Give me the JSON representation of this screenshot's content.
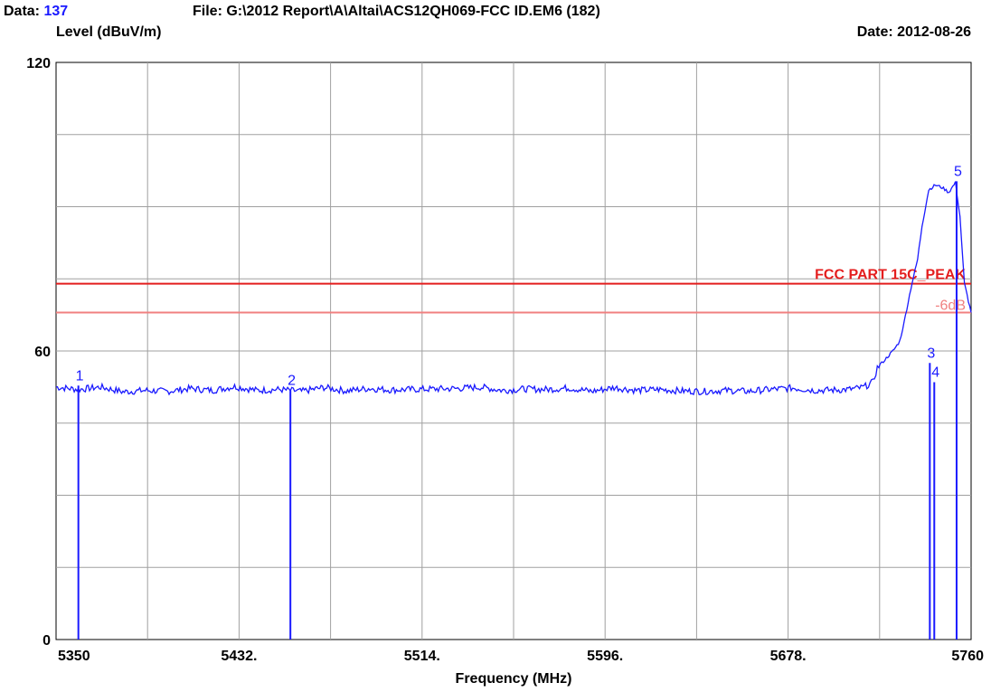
{
  "header": {
    "data_label": "Data:",
    "data_value": "137",
    "file": "File: G:\\2012 Report\\A\\Altai\\ACS12QH069-FCC ID.EM6  (182)",
    "level_label": "Level (dBuV/m)",
    "date": "Date: 2012-08-26"
  },
  "colors": {
    "trace": "#1a1aff",
    "limit": "#e41e1e",
    "limit_margin": "#f08080",
    "grid": "#a0a0a0",
    "background": "#ffffff"
  },
  "chart_data": {
    "type": "line",
    "xlabel": "Frequency (MHz)",
    "ylabel": "Level (dBuV/m)",
    "xlim": [
      5350,
      5760
    ],
    "ylim": [
      0,
      120
    ],
    "grid": true,
    "x_ticks": [
      "5350",
      "5432.",
      "5514.",
      "5596.",
      "5678.",
      "5760"
    ],
    "x_tick_values": [
      5350,
      5432,
      5514,
      5596,
      5678,
      5760
    ],
    "y_ticks": [
      "0",
      "60",
      "120"
    ],
    "y_tick_values": [
      0,
      60,
      120
    ],
    "series": [
      {
        "x": [
          5350,
          5360,
          5370,
          5380,
          5390,
          5400,
          5410,
          5420,
          5430,
          5440,
          5450,
          5460,
          5470,
          5480,
          5490,
          5500,
          5510,
          5520,
          5530,
          5540,
          5550,
          5560,
          5570,
          5580,
          5590,
          5600,
          5610,
          5620,
          5630,
          5640,
          5650,
          5660,
          5670,
          5680,
          5690,
          5700,
          5705,
          5710,
          5712,
          5714,
          5716,
          5718,
          5720,
          5722,
          5725,
          5728,
          5730,
          5733,
          5736,
          5738,
          5741,
          5744,
          5747,
          5750,
          5753,
          5755,
          5757,
          5760
        ],
        "y": [
          52.5,
          52.0,
          52.5,
          51.5,
          51.8,
          51.6,
          52.2,
          51.8,
          52.6,
          51.8,
          52.0,
          51.6,
          52.4,
          51.7,
          52.2,
          51.9,
          52.0,
          52.1,
          52.2,
          52.5,
          51.8,
          52.1,
          52.0,
          52.3,
          51.6,
          52.4,
          51.8,
          52.0,
          51.7,
          51.6,
          51.8,
          51.6,
          52.0,
          52.3,
          51.8,
          51.9,
          52.0,
          52.3,
          52.5,
          53.0,
          53.5,
          56.5,
          57.5,
          58.5,
          60.0,
          62.0,
          66.0,
          73.0,
          79.0,
          86.0,
          93.5,
          94.5,
          94.0,
          93.0,
          95.0,
          88.0,
          74.0,
          68.0
        ]
      }
    ],
    "limit_lines": [
      {
        "label": "FCC PART 15C_PEAK",
        "value": 74
      },
      {
        "label": "-6dB",
        "value": 68
      }
    ],
    "markers": [
      {
        "label": "1",
        "x": 5360.0,
        "y": 52.8
      },
      {
        "label": "2",
        "x": 5455.0,
        "y": 51.8
      },
      {
        "label": "3",
        "x": 5741.5,
        "y": 57.5
      },
      {
        "label": "4",
        "x": 5743.5,
        "y": 53.5
      },
      {
        "label": "5",
        "x": 5753.5,
        "y": 95.3
      }
    ]
  }
}
